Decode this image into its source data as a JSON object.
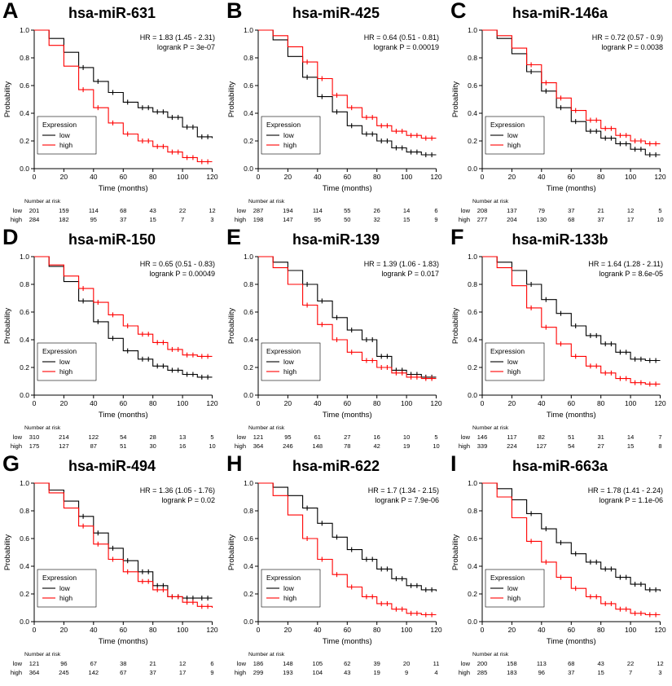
{
  "figure": {
    "legend_title": "Expression",
    "legend_low": "low",
    "legend_high": "high",
    "risk_label": "Number at risk",
    "xlabel": "Time (months)",
    "ylabel": "Probability",
    "x_ticks": [
      0,
      20,
      40,
      60,
      80,
      100,
      120
    ],
    "y_ticks": [
      "0.0",
      "0.2",
      "0.4",
      "0.6",
      "0.8",
      "1.0"
    ],
    "colors": {
      "low": "#000000",
      "high": "#FF0000"
    }
  },
  "chart_data": [
    {
      "type": "line",
      "panel": "A",
      "title": "hsa-miR-631",
      "hr": "HR = 1.83 (1.45 - 2.31)",
      "logrank": "logrank P = 3e-07",
      "xlabel": "Time (months)",
      "ylabel": "Probability",
      "xlim": [
        0,
        120
      ],
      "ylim": [
        0,
        1
      ],
      "x": [
        0,
        10,
        20,
        30,
        40,
        50,
        60,
        70,
        80,
        90,
        100,
        110,
        120
      ],
      "series": [
        {
          "name": "low",
          "color": "#000000",
          "values": [
            1.0,
            0.94,
            0.84,
            0.73,
            0.63,
            0.55,
            0.48,
            0.44,
            0.41,
            0.37,
            0.3,
            0.23,
            0.22
          ]
        },
        {
          "name": "high",
          "color": "#FF0000",
          "values": [
            1.0,
            0.89,
            0.74,
            0.57,
            0.44,
            0.33,
            0.25,
            0.2,
            0.16,
            0.12,
            0.08,
            0.05,
            0.05
          ]
        }
      ],
      "number_at_risk": {
        "times": [
          0,
          20,
          40,
          60,
          80,
          100,
          120
        ],
        "low": [
          201,
          159,
          114,
          68,
          43,
          22,
          12
        ],
        "high": [
          284,
          182,
          95,
          37,
          15,
          7,
          3
        ]
      }
    },
    {
      "type": "line",
      "panel": "B",
      "title": "hsa-miR-425",
      "hr": "HR = 0.64 (0.51 - 0.81)",
      "logrank": "logrank P = 0.00019",
      "xlabel": "Time (months)",
      "ylabel": "Probability",
      "xlim": [
        0,
        120
      ],
      "ylim": [
        0,
        1
      ],
      "x": [
        0,
        10,
        20,
        30,
        40,
        50,
        60,
        70,
        80,
        90,
        100,
        110,
        120
      ],
      "series": [
        {
          "name": "low",
          "color": "#000000",
          "values": [
            1.0,
            0.93,
            0.81,
            0.66,
            0.52,
            0.41,
            0.31,
            0.25,
            0.2,
            0.15,
            0.12,
            0.1,
            0.1
          ]
        },
        {
          "name": "high",
          "color": "#FF0000",
          "values": [
            1.0,
            0.96,
            0.88,
            0.77,
            0.65,
            0.53,
            0.44,
            0.37,
            0.31,
            0.27,
            0.24,
            0.22,
            0.22
          ]
        }
      ],
      "number_at_risk": {
        "times": [
          0,
          20,
          40,
          60,
          80,
          100,
          120
        ],
        "low": [
          287,
          194,
          114,
          55,
          26,
          14,
          6
        ],
        "high": [
          198,
          147,
          95,
          50,
          32,
          15,
          9
        ]
      }
    },
    {
      "type": "line",
      "panel": "C",
      "title": "hsa-miR-146a",
      "hr": "HR = 0.72 (0.57 - 0.9)",
      "logrank": "logrank P = 0.0038",
      "xlabel": "Time (months)",
      "ylabel": "Probability",
      "xlim": [
        0,
        120
      ],
      "ylim": [
        0,
        1
      ],
      "x": [
        0,
        10,
        20,
        30,
        40,
        50,
        60,
        70,
        80,
        90,
        100,
        110,
        120
      ],
      "series": [
        {
          "name": "low",
          "color": "#000000",
          "values": [
            1.0,
            0.94,
            0.83,
            0.7,
            0.56,
            0.44,
            0.34,
            0.27,
            0.22,
            0.18,
            0.14,
            0.1,
            0.1
          ]
        },
        {
          "name": "high",
          "color": "#FF0000",
          "values": [
            1.0,
            0.96,
            0.87,
            0.75,
            0.62,
            0.51,
            0.42,
            0.35,
            0.29,
            0.24,
            0.2,
            0.18,
            0.18
          ]
        }
      ],
      "number_at_risk": {
        "times": [
          0,
          20,
          40,
          60,
          80,
          100,
          120
        ],
        "low": [
          208,
          137,
          79,
          37,
          21,
          12,
          5
        ],
        "high": [
          277,
          204,
          130,
          68,
          37,
          17,
          10
        ]
      }
    },
    {
      "type": "line",
      "panel": "D",
      "title": "hsa-miR-150",
      "hr": "HR = 0.65 (0.51 - 0.83)",
      "logrank": "logrank P = 0.00049",
      "xlabel": "Time (months)",
      "ylabel": "Probability",
      "xlim": [
        0,
        120
      ],
      "ylim": [
        0,
        1
      ],
      "x": [
        0,
        10,
        20,
        30,
        40,
        50,
        60,
        70,
        80,
        90,
        100,
        110,
        120
      ],
      "series": [
        {
          "name": "low",
          "color": "#000000",
          "values": [
            1.0,
            0.93,
            0.82,
            0.68,
            0.53,
            0.41,
            0.32,
            0.26,
            0.21,
            0.18,
            0.15,
            0.13,
            0.13
          ]
        },
        {
          "name": "high",
          "color": "#FF0000",
          "values": [
            1.0,
            0.94,
            0.86,
            0.77,
            0.67,
            0.58,
            0.5,
            0.44,
            0.38,
            0.33,
            0.29,
            0.28,
            0.28
          ]
        }
      ],
      "number_at_risk": {
        "times": [
          0,
          20,
          40,
          60,
          80,
          100,
          120
        ],
        "low": [
          310,
          214,
          122,
          54,
          28,
          13,
          5
        ],
        "high": [
          175,
          127,
          87,
          51,
          30,
          16,
          10
        ]
      }
    },
    {
      "type": "line",
      "panel": "E",
      "title": "hsa-miR-139",
      "hr": "HR = 1.39 (1.06 - 1.83)",
      "logrank": "logrank P = 0.017",
      "xlabel": "Time (months)",
      "ylabel": "Probability",
      "xlim": [
        0,
        120
      ],
      "ylim": [
        0,
        1
      ],
      "x": [
        0,
        10,
        20,
        30,
        40,
        50,
        60,
        70,
        80,
        90,
        100,
        110,
        120
      ],
      "series": [
        {
          "name": "low",
          "color": "#000000",
          "values": [
            1.0,
            0.96,
            0.9,
            0.8,
            0.68,
            0.56,
            0.47,
            0.4,
            0.28,
            0.18,
            0.15,
            0.13,
            0.13
          ]
        },
        {
          "name": "high",
          "color": "#FF0000",
          "values": [
            1.0,
            0.92,
            0.8,
            0.65,
            0.51,
            0.4,
            0.31,
            0.25,
            0.2,
            0.16,
            0.13,
            0.12,
            0.12
          ]
        }
      ],
      "number_at_risk": {
        "times": [
          0,
          20,
          40,
          60,
          80,
          100,
          120
        ],
        "low": [
          121,
          95,
          61,
          27,
          16,
          10,
          5
        ],
        "high": [
          364,
          246,
          148,
          78,
          42,
          19,
          10
        ]
      }
    },
    {
      "type": "line",
      "panel": "F",
      "title": "hsa-miR-133b",
      "hr": "HR = 1.64 (1.28 - 2.11)",
      "logrank": "logrank P = 8.6e-05",
      "xlabel": "Time (months)",
      "ylabel": "Probability",
      "xlim": [
        0,
        120
      ],
      "ylim": [
        0,
        1
      ],
      "x": [
        0,
        10,
        20,
        30,
        40,
        50,
        60,
        70,
        80,
        90,
        100,
        110,
        120
      ],
      "series": [
        {
          "name": "low",
          "color": "#000000",
          "values": [
            1.0,
            0.96,
            0.9,
            0.8,
            0.69,
            0.59,
            0.5,
            0.43,
            0.37,
            0.31,
            0.26,
            0.25,
            0.25
          ]
        },
        {
          "name": "high",
          "color": "#FF0000",
          "values": [
            1.0,
            0.92,
            0.79,
            0.63,
            0.49,
            0.37,
            0.28,
            0.21,
            0.16,
            0.12,
            0.09,
            0.08,
            0.08
          ]
        }
      ],
      "number_at_risk": {
        "times": [
          0,
          20,
          40,
          60,
          80,
          100,
          120
        ],
        "low": [
          146,
          117,
          82,
          51,
          31,
          14,
          7
        ],
        "high": [
          339,
          224,
          127,
          54,
          27,
          15,
          8
        ]
      }
    },
    {
      "type": "line",
      "panel": "G",
      "title": "hsa-miR-494",
      "hr": "HR = 1.36 (1.05 - 1.76)",
      "logrank": "logrank P = 0.02",
      "xlabel": "Time (months)",
      "ylabel": "Probability",
      "xlim": [
        0,
        120
      ],
      "ylim": [
        0,
        1
      ],
      "x": [
        0,
        10,
        20,
        30,
        40,
        50,
        60,
        70,
        80,
        90,
        100,
        110,
        120
      ],
      "series": [
        {
          "name": "low",
          "color": "#000000",
          "values": [
            1.0,
            0.95,
            0.87,
            0.76,
            0.64,
            0.53,
            0.44,
            0.36,
            0.26,
            0.18,
            0.17,
            0.17,
            0.17
          ]
        },
        {
          "name": "high",
          "color": "#FF0000",
          "values": [
            1.0,
            0.93,
            0.82,
            0.69,
            0.56,
            0.45,
            0.36,
            0.29,
            0.23,
            0.18,
            0.14,
            0.11,
            0.1
          ]
        }
      ],
      "number_at_risk": {
        "times": [
          0,
          20,
          40,
          60,
          80,
          100,
          120
        ],
        "low": [
          121,
          96,
          67,
          38,
          21,
          12,
          6
        ],
        "high": [
          364,
          245,
          142,
          67,
          37,
          17,
          9
        ]
      }
    },
    {
      "type": "line",
      "panel": "H",
      "title": "hsa-miR-622",
      "hr": "HR = 1.7 (1.34 - 2.15)",
      "logrank": "logrank P = 7.9e-06",
      "xlabel": "Time (months)",
      "ylabel": "Probability",
      "xlim": [
        0,
        120
      ],
      "ylim": [
        0,
        1
      ],
      "x": [
        0,
        10,
        20,
        30,
        40,
        50,
        60,
        70,
        80,
        90,
        100,
        110,
        120
      ],
      "series": [
        {
          "name": "low",
          "color": "#000000",
          "values": [
            1.0,
            0.97,
            0.91,
            0.82,
            0.71,
            0.61,
            0.52,
            0.45,
            0.38,
            0.31,
            0.26,
            0.23,
            0.22
          ]
        },
        {
          "name": "high",
          "color": "#FF0000",
          "values": [
            1.0,
            0.91,
            0.77,
            0.6,
            0.45,
            0.34,
            0.25,
            0.18,
            0.13,
            0.09,
            0.06,
            0.05,
            0.05
          ]
        }
      ],
      "number_at_risk": {
        "times": [
          0,
          20,
          40,
          60,
          80,
          100,
          120
        ],
        "low": [
          186,
          148,
          105,
          62,
          39,
          20,
          11
        ],
        "high": [
          299,
          193,
          104,
          43,
          19,
          9,
          4
        ]
      }
    },
    {
      "type": "line",
      "panel": "I",
      "title": "hsa-miR-663a",
      "hr": "HR = 1.78 (1.41 - 2.24)",
      "logrank": "logrank P = 1.1e-06",
      "xlabel": "Time (months)",
      "ylabel": "Probability",
      "xlim": [
        0,
        120
      ],
      "ylim": [
        0,
        1
      ],
      "x": [
        0,
        10,
        20,
        30,
        40,
        50,
        60,
        70,
        80,
        90,
        100,
        110,
        120
      ],
      "series": [
        {
          "name": "low",
          "color": "#000000",
          "values": [
            1.0,
            0.96,
            0.88,
            0.78,
            0.67,
            0.57,
            0.49,
            0.43,
            0.38,
            0.32,
            0.27,
            0.23,
            0.22
          ]
        },
        {
          "name": "high",
          "color": "#FF0000",
          "values": [
            1.0,
            0.9,
            0.75,
            0.58,
            0.43,
            0.32,
            0.24,
            0.18,
            0.13,
            0.09,
            0.06,
            0.05,
            0.05
          ]
        }
      ],
      "number_at_risk": {
        "times": [
          0,
          20,
          40,
          60,
          80,
          100,
          120
        ],
        "low": [
          200,
          158,
          113,
          68,
          43,
          22,
          12
        ],
        "high": [
          285,
          183,
          96,
          37,
          15,
          7,
          3
        ]
      }
    }
  ]
}
